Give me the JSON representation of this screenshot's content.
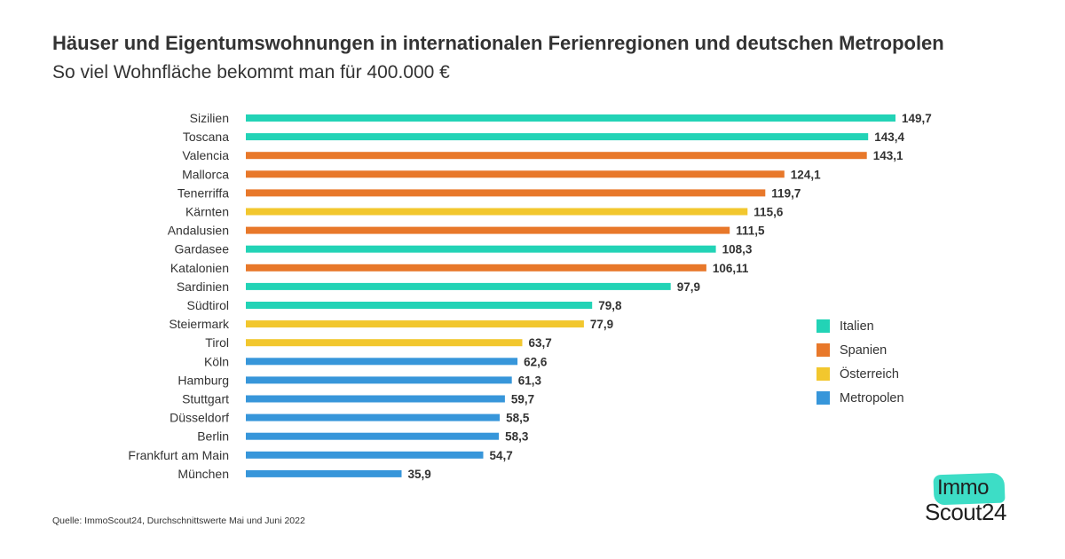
{
  "header": {
    "title": "Häuser und Eigentumswohnungen in internationalen Ferienregionen und deutschen Metropolen",
    "subtitle": "So viel Wohnfläche bekommt man für 400.000 €"
  },
  "chart_data": {
    "type": "bar",
    "orientation": "horizontal",
    "title": "Häuser und Eigentumswohnungen in internationalen Ferienregionen und deutschen Metropolen",
    "subtitle": "So viel Wohnfläche bekommt man für 400.000 €",
    "xlabel": "",
    "ylabel": "",
    "xlim": [
      0,
      150
    ],
    "grid": false,
    "legend_position": "right",
    "groups": [
      {
        "name": "Italien",
        "color": "#22d3b6"
      },
      {
        "name": "Spanien",
        "color": "#e8782a"
      },
      {
        "name": "Österreich",
        "color": "#f2c72e"
      },
      {
        "name": "Metropolen",
        "color": "#3796da"
      }
    ],
    "bars": [
      {
        "category": "Sizilien",
        "value": 149.7,
        "label": "149,7",
        "group": "Italien"
      },
      {
        "category": "Toscana",
        "value": 143.4,
        "label": "143,4",
        "group": "Italien"
      },
      {
        "category": "Valencia",
        "value": 143.1,
        "label": "143,1",
        "group": "Spanien"
      },
      {
        "category": "Mallorca",
        "value": 124.1,
        "label": "124,1",
        "group": "Spanien"
      },
      {
        "category": "Tenerriffa",
        "value": 119.7,
        "label": "119,7",
        "group": "Spanien"
      },
      {
        "category": "Kärnten",
        "value": 115.6,
        "label": "115,6",
        "group": "Österreich"
      },
      {
        "category": "Andalusien",
        "value": 111.5,
        "label": "111,5",
        "group": "Spanien"
      },
      {
        "category": "Gardasee",
        "value": 108.3,
        "label": "108,3",
        "group": "Italien"
      },
      {
        "category": "Katalonien",
        "value": 106.11,
        "label": "106,11",
        "group": "Spanien"
      },
      {
        "category": "Sardinien",
        "value": 97.9,
        "label": "97,9",
        "group": "Italien"
      },
      {
        "category": "Südtirol",
        "value": 79.8,
        "label": "79,8",
        "group": "Italien"
      },
      {
        "category": "Steiermark",
        "value": 77.9,
        "label": "77,9",
        "group": "Österreich"
      },
      {
        "category": "Tirol",
        "value": 63.7,
        "label": "63,7",
        "group": "Österreich"
      },
      {
        "category": "Köln",
        "value": 62.6,
        "label": "62,6",
        "group": "Metropolen"
      },
      {
        "category": "Hamburg",
        "value": 61.3,
        "label": "61,3",
        "group": "Metropolen"
      },
      {
        "category": "Stuttgart",
        "value": 59.7,
        "label": "59,7",
        "group": "Metropolen"
      },
      {
        "category": "Düsseldorf",
        "value": 58.5,
        "label": "58,5",
        "group": "Metropolen"
      },
      {
        "category": "Berlin",
        "value": 58.3,
        "label": "58,3",
        "group": "Metropolen"
      },
      {
        "category": "Frankfurt am Main",
        "value": 54.7,
        "label": "54,7",
        "group": "Metropolen"
      },
      {
        "category": "München",
        "value": 35.9,
        "label": "35,9",
        "group": "Metropolen"
      }
    ]
  },
  "legend": {
    "items": [
      {
        "label": "Italien",
        "color": "#22d3b6"
      },
      {
        "label": "Spanien",
        "color": "#e8782a"
      },
      {
        "label": "Österreich",
        "color": "#f2c72e"
      },
      {
        "label": "Metropolen",
        "color": "#3796da"
      }
    ]
  },
  "footer": {
    "source": "Quelle: ImmoScout24, Durchschnittswerte Mai und Juni 2022"
  },
  "logo": {
    "line1": "Immo",
    "line2": "Scout24",
    "accent_color": "#3dddc6"
  }
}
